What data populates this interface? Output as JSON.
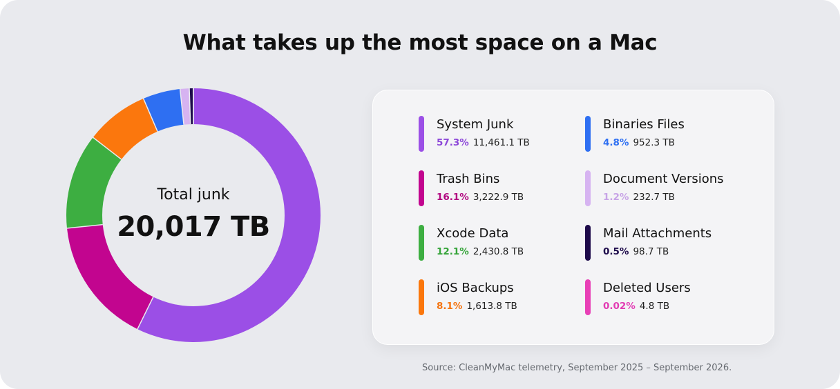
{
  "title": "What takes up the most space on a Mac",
  "total": {
    "label": "Total junk",
    "value": "20,017 TB"
  },
  "source": "Source: CleanMyMac telemetry, September 2025 – September 2026.",
  "chart_data": {
    "type": "pie",
    "title": "What takes up the most space on a Mac",
    "total_label": "Total junk",
    "total_value": "20,017 TB",
    "legend_placement": "right",
    "slices": [
      {
        "name": "System Junk",
        "pct_label": "57.3%",
        "size": "11,461.1 TB",
        "value": 11461.1,
        "color": "#9b4fe6",
        "pct_color": "#8b46d8"
      },
      {
        "name": "Trash Bins",
        "pct_label": "16.1%",
        "size": "3,222.9 TB",
        "value": 3222.9,
        "color": "#c2058f",
        "pct_color": "#b1067f"
      },
      {
        "name": "Xcode Data",
        "pct_label": "12.1%",
        "size": "2,430.8 TB",
        "value": 2430.8,
        "color": "#3dae41",
        "pct_color": "#34a338"
      },
      {
        "name": "iOS Backups",
        "pct_label": "8.1%",
        "size": "1,613.8 TB",
        "value": 1613.8,
        "color": "#fb770d",
        "pct_color": "#f47410"
      },
      {
        "name": "Binaries Files",
        "pct_label": "4.8%",
        "size": "952.3 TB",
        "value": 952.3,
        "color": "#2e6ff2",
        "pct_color": "#2e6ff2"
      },
      {
        "name": "Document Versions",
        "pct_label": "1.2%",
        "size": "232.7 TB",
        "value": 232.7,
        "color": "#d6b3f1",
        "pct_color": "#c7a3e6"
      },
      {
        "name": "Mail Attachments",
        "pct_label": "0.5%",
        "size": "98.7 TB",
        "value": 98.7,
        "color": "#1d0a4a",
        "pct_color": "#1d0a4a"
      },
      {
        "name": "Deleted Users",
        "pct_label": "0.02%",
        "size": "4.8 TB",
        "value": 4.8,
        "color": "#e83fb6",
        "pct_color": "#e23cb3"
      }
    ]
  }
}
